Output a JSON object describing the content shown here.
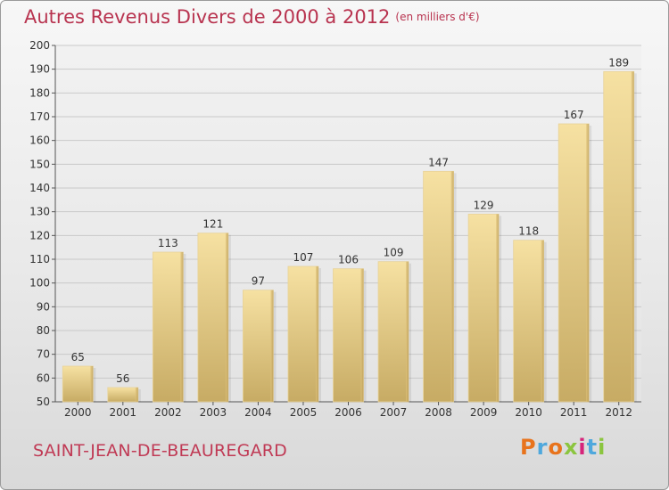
{
  "header": {
    "title": "Autres Revenus Divers de 2000 à 2012",
    "subtitle": "(en milliers d'€)"
  },
  "footer": {
    "location": "SAINT-JEAN-DE-BEAUREGARD",
    "brand": "Proxiti",
    "brand_colors": [
      "#e8731c",
      "#4fa8dd",
      "#e8731c",
      "#8bc53f",
      "#d6247a",
      "#4fa8dd",
      "#8bc53f"
    ]
  },
  "colors": {
    "title": "#b8334f",
    "bar_light": "#f5dfa0",
    "bar_dark": "#c9ad66",
    "grid": "#c8c8c8"
  },
  "chart_data": {
    "type": "bar",
    "title": "Autres Revenus Divers de 2000 à 2012",
    "subtitle": "(en milliers d'€)",
    "xlabel": "",
    "ylabel": "",
    "categories": [
      "2000",
      "2001",
      "2002",
      "2003",
      "2004",
      "2005",
      "2006",
      "2007",
      "2008",
      "2009",
      "2010",
      "2011",
      "2012"
    ],
    "values": [
      65,
      56,
      113,
      121,
      97,
      107,
      106,
      109,
      147,
      129,
      118,
      167,
      189
    ],
    "ylim": [
      50,
      200
    ],
    "yticks": [
      50,
      60,
      70,
      80,
      90,
      100,
      110,
      120,
      130,
      140,
      150,
      160,
      170,
      180,
      190,
      200
    ],
    "grid": true,
    "data_labels": true
  }
}
